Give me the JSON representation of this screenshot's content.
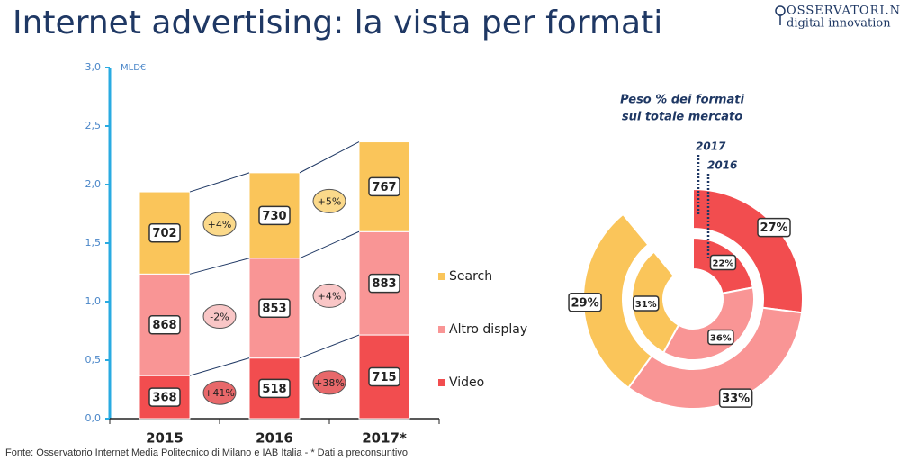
{
  "header": {
    "title": "Internet advertising: la vista per formati",
    "logo": [
      "OSSERVATORI.NET",
      "digital innovation"
    ]
  },
  "footer": "Fonte: Osservatorio Internet Media Politecnico di Milano e IAB Italia - * Dati a preconsuntivo",
  "chart_data": [
    {
      "type": "stacked_bar",
      "y_label": "MLD€",
      "categories": [
        "2015",
        "2016",
        "2017*"
      ],
      "series": [
        {
          "name": "Video",
          "color": "#f24d4f",
          "values": [
            0.368,
            0.518,
            0.715
          ],
          "value_labels": [
            "368",
            "518",
            "715"
          ]
        },
        {
          "name": "Altro display",
          "color": "#f99595",
          "values": [
            0.868,
            0.853,
            0.883
          ],
          "value_labels": [
            "868",
            "853",
            "883"
          ]
        },
        {
          "name": "Search",
          "color": "#fac55a",
          "values": [
            0.702,
            0.73,
            0.767
          ],
          "value_labels": [
            "702",
            "730",
            "767"
          ]
        }
      ],
      "changes": [
        [
          "+41%",
          "-2%",
          "+4%"
        ],
        [
          "+38%",
          "+4%",
          "+5%"
        ]
      ],
      "ylim": [
        0,
        3
      ],
      "yticks": [
        {
          "value": 0,
          "label": "0,0"
        },
        {
          "value": 0.5,
          "label": "0,5"
        },
        {
          "value": 1,
          "label": "1,0"
        },
        {
          "value": 1.5,
          "label": "1,5"
        },
        {
          "value": 2,
          "label": "2,0"
        },
        {
          "value": 2.5,
          "label": "2,5"
        },
        {
          "value": 3,
          "label": "3,0"
        }
      ]
    },
    {
      "type": "donut",
      "title": [
        "Peso % dei formati",
        "sul totale mercato"
      ],
      "categories": [
        "Video",
        "Altro display",
        "Search"
      ],
      "colors": [
        "#f24d4f",
        "#f99595",
        "#fac55a"
      ],
      "series": [
        {
          "name": "2017",
          "values": [
            27,
            33,
            29
          ],
          "value_labels": [
            "27%",
            "33%",
            "29%"
          ]
        },
        {
          "name": "2016",
          "values": [
            22,
            36,
            31
          ],
          "value_labels": [
            "22%",
            "36%",
            "31%"
          ]
        }
      ]
    }
  ]
}
